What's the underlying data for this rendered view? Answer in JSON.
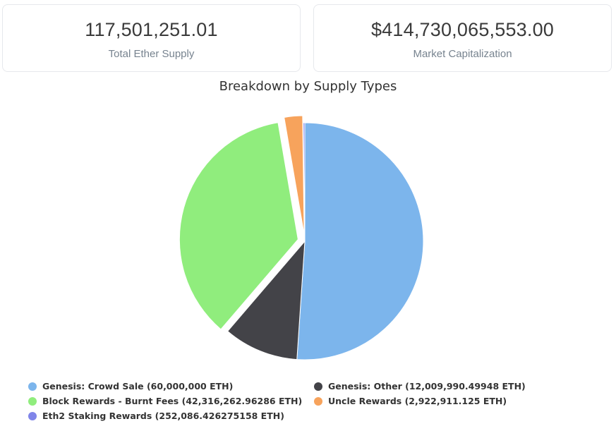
{
  "stats": {
    "total_supply": {
      "value": "117,501,251.01",
      "label": "Total Ether Supply"
    },
    "market_cap": {
      "value": "$414,730,065,553.00",
      "label": "Market Capitalization"
    }
  },
  "chart_data": {
    "type": "pie",
    "title": "Breakdown by Supply Types",
    "slices": [
      {
        "label": "Genesis: Crowd Sale (60,000,000 ETH)",
        "value": 60000000,
        "color": "#7cb5ec"
      },
      {
        "label": "Genesis: Other (12,009,990.49948 ETH)",
        "value": 12009990.49948,
        "color": "#434348"
      },
      {
        "label": "Block Rewards - Burnt Fees (42,316,262.96286 ETH)",
        "value": 42316262.96286,
        "color": "#90ed7d",
        "exploded": true
      },
      {
        "label": "Uncle Rewards (2,922,911.125 ETH)",
        "value": 2922911.125,
        "color": "#f7a35c",
        "exploded": true
      },
      {
        "label": "Eth2 Staking Rewards (252,086.426275158 ETH)",
        "value": 252086.426275158,
        "color": "#8085e9"
      }
    ],
    "legend_position": "bottom"
  }
}
